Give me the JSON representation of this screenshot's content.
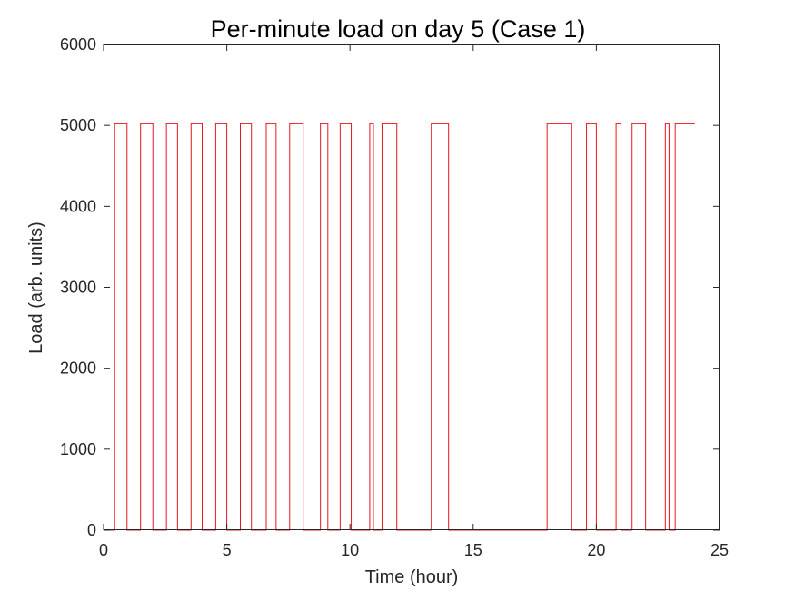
{
  "chart_data": {
    "type": "line",
    "title": "Per-minute load on day 5 (Case 1)",
    "xlabel": "Time (hour)",
    "ylabel": "Load (arb. units)",
    "xlim": [
      0,
      25
    ],
    "ylim": [
      0,
      6000
    ],
    "xticks": [
      0,
      5,
      10,
      15,
      20,
      25
    ],
    "yticks": [
      0,
      1000,
      2000,
      3000,
      4000,
      5000,
      6000
    ],
    "grid": false,
    "legend": "none",
    "series": [
      {
        "color": "#e8161c",
        "step": true,
        "x": [
          0,
          0.45,
          0.95,
          1.5,
          2.0,
          2.55,
          3.0,
          3.55,
          4.0,
          4.55,
          5.0,
          5.55,
          6.0,
          6.6,
          7.0,
          7.55,
          8.1,
          8.8,
          9.1,
          9.6,
          10.05,
          10.8,
          10.95,
          11.3,
          11.9,
          13.3,
          14.0,
          18.0,
          19.0,
          19.6,
          20.0,
          20.8,
          21.0,
          21.45,
          22.0,
          22.8,
          22.95,
          23.2,
          24.0
        ],
        "y": [
          0,
          5020,
          0,
          5020,
          0,
          5020,
          0,
          5020,
          0,
          5020,
          0,
          5020,
          0,
          5020,
          0,
          5020,
          0,
          5020,
          0,
          5020,
          0,
          5020,
          0,
          5020,
          0,
          5020,
          0,
          5020,
          0,
          5020,
          0,
          5020,
          0,
          5020,
          0,
          5020,
          0,
          5020,
          5020
        ]
      }
    ]
  }
}
